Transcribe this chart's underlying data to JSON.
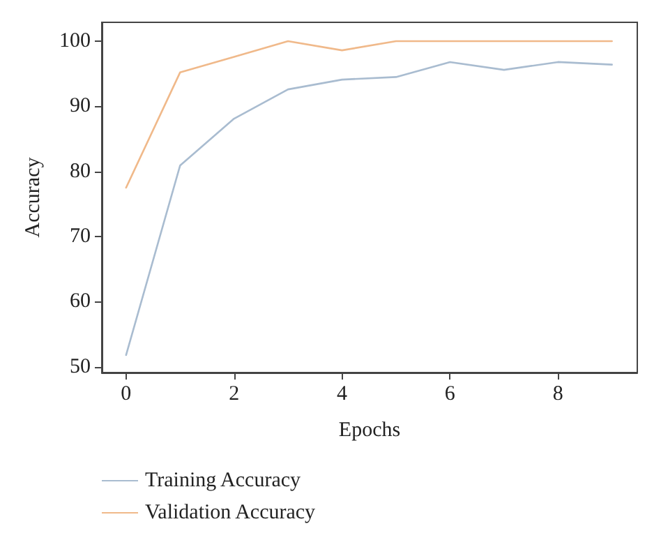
{
  "chart_data": {
    "type": "line",
    "xlabel": "Epochs",
    "ylabel": "Accuracy",
    "x": [
      0,
      1,
      2,
      3,
      4,
      5,
      6,
      7,
      8,
      9
    ],
    "series": [
      {
        "name": "Training Accuracy",
        "color": "#a9bcd0",
        "values": [
          51.8,
          80.9,
          88.1,
          92.6,
          94.1,
          94.5,
          96.8,
          95.6,
          96.8,
          96.4
        ]
      },
      {
        "name": "Validation Accuracy",
        "color": "#f0b98a",
        "values": [
          77.5,
          95.2,
          97.6,
          100,
          98.6,
          100,
          100,
          100,
          100,
          100
        ]
      }
    ],
    "xlim": [
      -0.45,
      9.47
    ],
    "xticks": [
      0,
      2,
      4,
      6,
      8
    ],
    "ylim": [
      49.1,
      102.9
    ],
    "yticks": [
      50,
      60,
      70,
      80,
      90,
      100
    ],
    "grid": false,
    "legend": "bottom left",
    "marker": "none",
    "line_style": "solid"
  }
}
